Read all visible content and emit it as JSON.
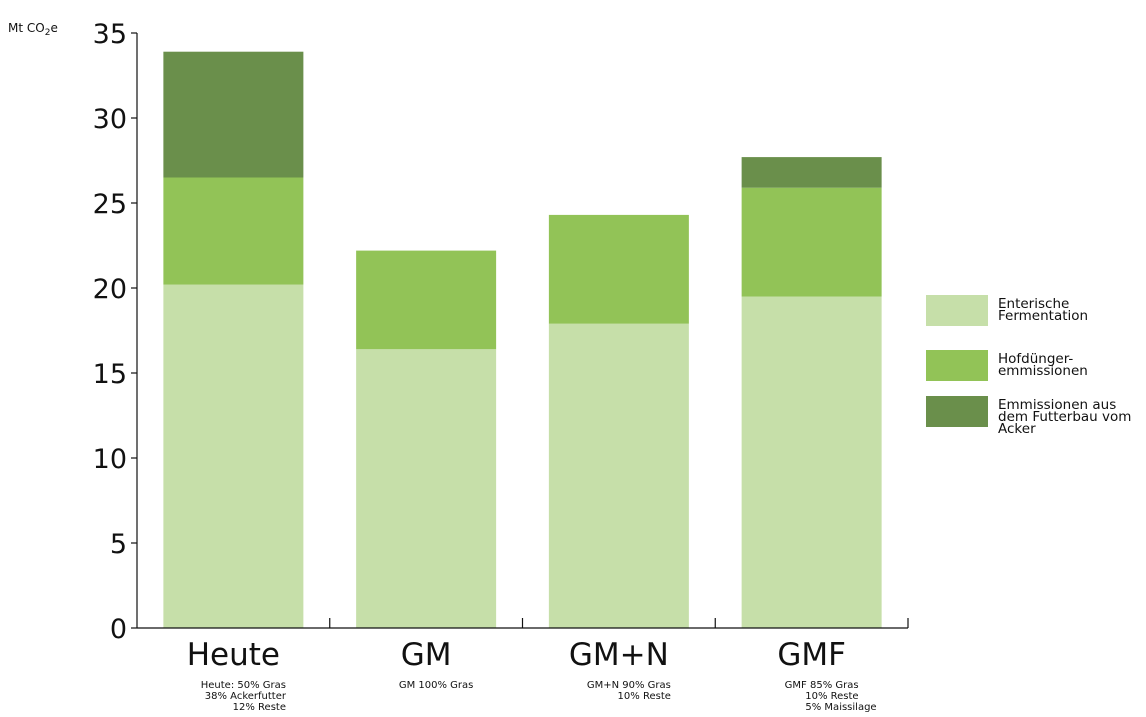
{
  "chart_data": {
    "type": "bar",
    "stacked": true,
    "y_unit": {
      "prefix": "Mt CO",
      "subscript": "2",
      "suffix": "e"
    },
    "ylim": [
      0,
      35
    ],
    "yticks": [
      0,
      5,
      10,
      15,
      20,
      25,
      30,
      35
    ],
    "categories": [
      "Heute",
      "GM",
      "GM+N",
      "GMF"
    ],
    "category_notes": [
      [
        "Heute: 50% Gras",
        "38% Ackerfutter",
        "12% Reste"
      ],
      [
        "GM 100% Gras"
      ],
      [
        "GM+N 90% Gras",
        "10% Reste"
      ],
      [
        "GMF 85% Gras",
        "10% Reste",
        "5% Maissilage"
      ]
    ],
    "series": [
      {
        "name": "Enterische Fermentation",
        "label_lines": [
          "Enterische",
          "Fermentation"
        ],
        "color": "#c6dfa9",
        "values": [
          20.2,
          16.4,
          17.9,
          19.5
        ]
      },
      {
        "name": "Hofdünger-emmissionen",
        "label_lines": [
          "Hofdünger-",
          "emmissionen"
        ],
        "color": "#92c357",
        "values": [
          6.3,
          5.8,
          6.4,
          6.4
        ]
      },
      {
        "name": "Emmissionen aus dem Futterbau vom Acker",
        "label_lines": [
          "Emmissionen aus",
          "dem Futterbau vom",
          "Acker"
        ],
        "color": "#6a8f4b",
        "values": [
          7.4,
          0,
          0,
          1.8
        ]
      }
    ],
    "legend_position": "right",
    "grid": false
  }
}
